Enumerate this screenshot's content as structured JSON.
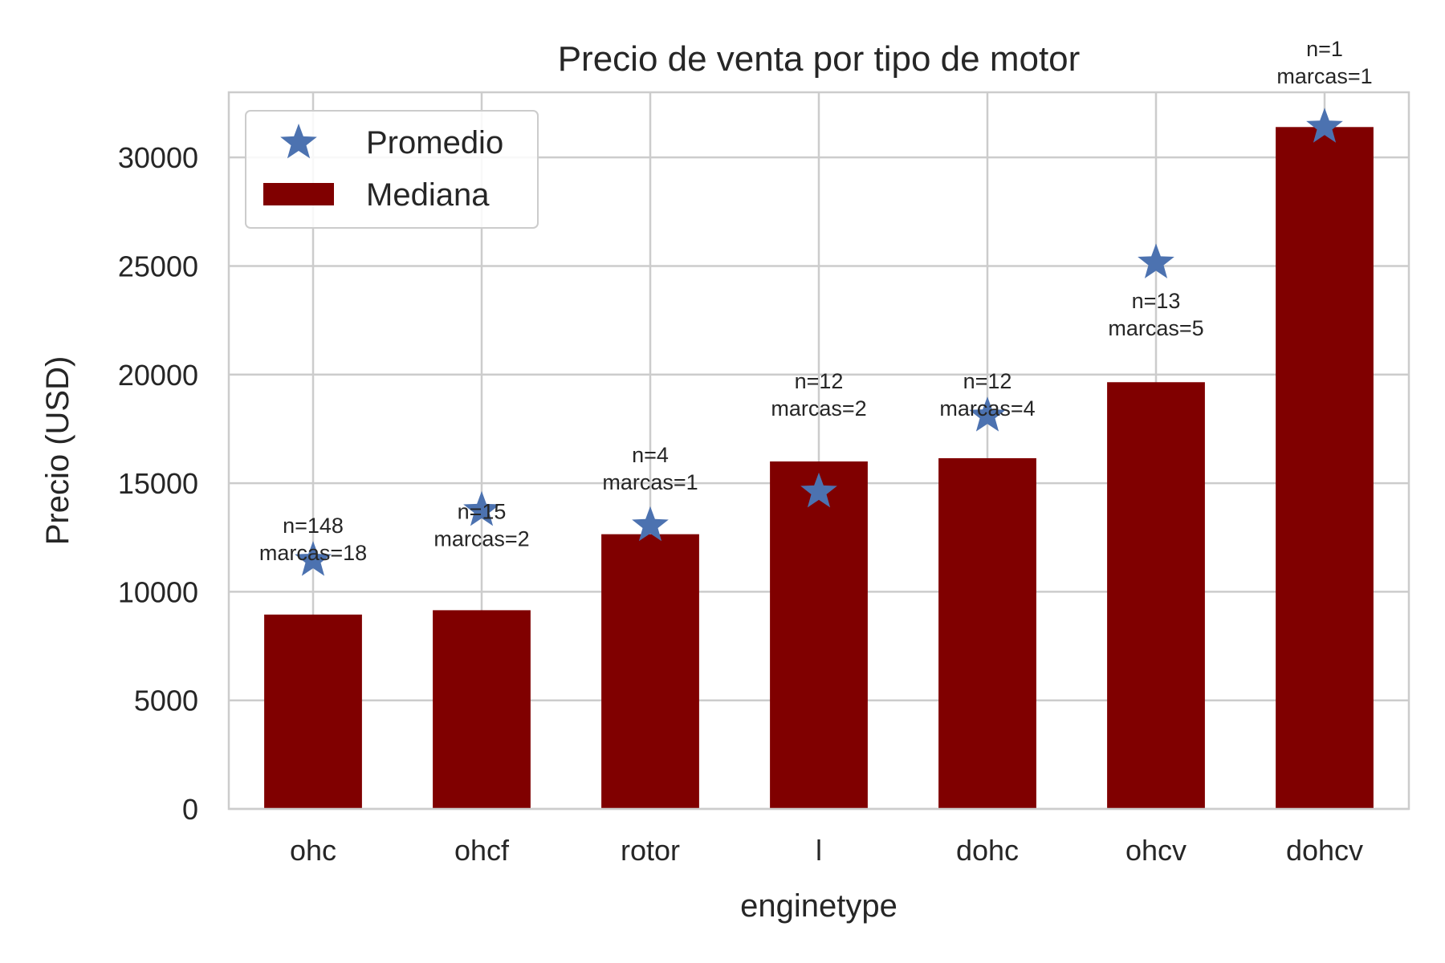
{
  "chart_data": {
    "type": "bar",
    "title": "Precio de venta por tipo de motor",
    "xlabel": "enginetype",
    "ylabel": "Precio (USD)",
    "ylim": [
      0,
      33000
    ],
    "yticks": [
      0,
      5000,
      10000,
      15000,
      20000,
      25000,
      30000
    ],
    "grid": true,
    "legend_position": "top-left",
    "categories": [
      "ohc",
      "ohcf",
      "rotor",
      "l",
      "dohc",
      "ohcv",
      "dohcv"
    ],
    "series": [
      {
        "name": "Mediana",
        "kind": "bar",
        "color": "#800000",
        "values": [
          8950,
          9150,
          12650,
          16000,
          16150,
          19650,
          31400
        ]
      },
      {
        "name": "Promedio",
        "kind": "marker",
        "marker": "star",
        "color": "#4c72b0",
        "values": [
          11450,
          13750,
          13050,
          14600,
          18100,
          25150,
          31400
        ]
      }
    ],
    "annotations": [
      {
        "category": "ohc",
        "n": "n=148",
        "marcas": "marcas=18",
        "y": 11450
      },
      {
        "category": "ohcf",
        "n": "n=15",
        "marcas": "marcas=2",
        "y": 12100
      },
      {
        "category": "rotor",
        "n": "n=4",
        "marcas": "marcas=1",
        "y": 14700
      },
      {
        "category": "l",
        "n": "n=12",
        "marcas": "marcas=2",
        "y": 18100
      },
      {
        "category": "dohc",
        "n": "n=12",
        "marcas": "marcas=4",
        "y": 18100
      },
      {
        "category": "ohcv",
        "n": "n=13",
        "marcas": "marcas=5",
        "y": 21800
      },
      {
        "category": "dohcv",
        "n": "n=1",
        "marcas": "marcas=1",
        "y": 33400
      }
    ]
  }
}
